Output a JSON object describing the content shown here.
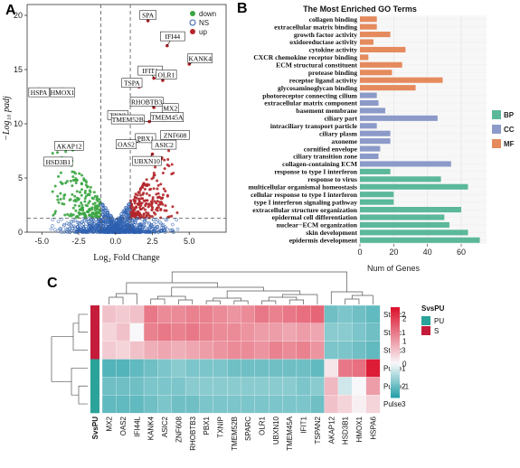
{
  "panels": {
    "a": "A",
    "b": "B",
    "c": "C"
  },
  "chart_data": [
    {
      "type": "scatter",
      "panel": "A",
      "xlabel": "Log₂ Fold  Change",
      "ylabel": "−Log₁₀ padj",
      "xlim": [
        -6,
        7.5
      ],
      "ylim": [
        0,
        21
      ],
      "xticks": [
        -5.0,
        -2.5,
        0.0,
        2.5,
        5.0
      ],
      "xtick_labels": [
        "-5.0",
        "-2.5",
        "0.0",
        "2.5",
        "5.0"
      ],
      "yticks": [
        0,
        5,
        10,
        15,
        20
      ],
      "thresholds": {
        "log2fc": [
          -1,
          1
        ],
        "padj_line": 1.3
      },
      "legend": [
        {
          "name": "down",
          "color": "#3aa541"
        },
        {
          "name": "NS",
          "color": "#2c5fb0"
        },
        {
          "name": "up",
          "color": "#b3262a"
        }
      ],
      "legend_position": "top-right",
      "labeled_genes": [
        {
          "gene": "SPA",
          "x": 2.2,
          "y": 19.5
        },
        {
          "gene": "IFI44",
          "x": 3.5,
          "y": 17.2
        },
        {
          "gene": "KANK4",
          "x": 5.0,
          "y": 15.5
        },
        {
          "gene": "IFIT1",
          "x": 2.6,
          "y": 14.2
        },
        {
          "gene": "OLR1",
          "x": 3.2,
          "y": 14.0
        },
        {
          "gene": "TSPA",
          "x": 1.6,
          "y": 13.4
        },
        {
          "gene": "RHOBTB3",
          "x": 2.6,
          "y": 11.5
        },
        {
          "gene": "MX2",
          "x": 3.1,
          "y": 10.9
        },
        {
          "gene": "TXNI",
          "x": 1.5,
          "y": 10.6
        },
        {
          "gene": "TMEM45A",
          "x": 3.0,
          "y": 10.4
        },
        {
          "gene": "TMEM52B",
          "x": 2.3,
          "y": 10.2
        },
        {
          "gene": "ZNF608",
          "x": 3.3,
          "y": 9.1
        },
        {
          "gene": "PBX1",
          "x": 2.4,
          "y": 8.8
        },
        {
          "gene": "OAS2",
          "x": 1.7,
          "y": 8.4
        },
        {
          "gene": "ASIC2",
          "x": 2.8,
          "y": 8.2
        },
        {
          "gene": "UBXN10",
          "x": 2.5,
          "y": 7.2
        },
        {
          "gene": "HSPA",
          "x": -5.2,
          "y": 13.2
        },
        {
          "gene": "HMOX1",
          "x": -3.6,
          "y": 13.2
        },
        {
          "gene": "AKAP12",
          "x": -2.9,
          "y": 7.6
        },
        {
          "gene": "HSD3B1",
          "x": -3.4,
          "y": 6.8
        }
      ]
    },
    {
      "type": "bar",
      "panel": "B",
      "title": "The Most Enriched GO Terms",
      "xlabel": "Num of Genes",
      "xlim": [
        0,
        75
      ],
      "xticks": [
        0,
        20,
        40,
        60
      ],
      "legend": [
        {
          "name": "BP",
          "color": "#5bb89a"
        },
        {
          "name": "CC",
          "color": "#8c9ac9"
        },
        {
          "name": "MF",
          "color": "#e58a5d"
        }
      ],
      "legend_position": "right",
      "categories": [
        "collagen binding",
        "extracellular matrix binding",
        "growth factor activity",
        "oxidoreductase activity",
        "cytokine activity",
        "CXCR chemokine receptor binding",
        "ECM structural constituent",
        "protease binding",
        "receptor ligand activity",
        "glycosaminoglycan binding",
        "photoreceptor connecting cilium",
        "extracellular matrix component",
        "basement membrane",
        "ciliary part",
        "intraciliary transport particle",
        "ciliary plasm",
        "axoneme",
        "cornified envelope",
        "ciliary transition zone",
        "collagen-containing ECM",
        "response to type I interferon",
        "response to virus",
        "multicellular organismal homeostasis",
        "cellular response to type I interferon",
        "type I interferon signaling pathway",
        "extracellular structure organization",
        "epidermal cell differentiation",
        "nuclear−ECM organization",
        "skin development",
        "epidermis development"
      ],
      "series": [
        {
          "name": "MF",
          "values": [
            10,
            10,
            18,
            8,
            27,
            5,
            25,
            19,
            49,
            33,
            null,
            null,
            null,
            null,
            null,
            null,
            null,
            null,
            null,
            null,
            null,
            null,
            null,
            null,
            null,
            null,
            null,
            null,
            null,
            null
          ]
        },
        {
          "name": "CC",
          "values": [
            null,
            null,
            null,
            null,
            null,
            null,
            null,
            null,
            null,
            null,
            10,
            11,
            15,
            46,
            10,
            18,
            18,
            12,
            11,
            54,
            null,
            null,
            null,
            null,
            null,
            null,
            null,
            null,
            null,
            null
          ]
        },
        {
          "name": "BP",
          "values": [
            null,
            null,
            null,
            null,
            null,
            null,
            null,
            null,
            null,
            null,
            null,
            null,
            null,
            null,
            null,
            null,
            null,
            null,
            null,
            null,
            18,
            48,
            64,
            20,
            20,
            60,
            50,
            53,
            64,
            71
          ]
        }
      ]
    },
    {
      "type": "heatmap",
      "panel": "C",
      "rows": [
        "Static2",
        "Static1",
        "Static3",
        "Pulse1",
        "Pulse2",
        "Pulse3"
      ],
      "row_groups": [
        "S",
        "S",
        "S",
        "PU",
        "PU",
        "PU"
      ],
      "columns": [
        "MX2",
        "OAS2",
        "IFI44L",
        "KANK4",
        "ASIC2",
        "ZNF608",
        "RHOBTB3",
        "PBX1",
        "TXNIP",
        "TMEM52B",
        "SPARC",
        "OLR1",
        "UBXN10",
        "TMEM45A",
        "IFIT1",
        "TSPAN2",
        "AKAP12",
        "HSD3B1",
        "HMOX1",
        "HSPA6"
      ],
      "annotation_label": "SvsPU",
      "legend_title": "SvsPU",
      "legend": [
        {
          "name": "PU",
          "color": "#2aa39a"
        },
        {
          "name": "S",
          "color": "#c41c3a"
        }
      ],
      "colorbar_ticks": [
        2,
        1,
        0,
        -1
      ],
      "color_range": [
        -1.5,
        2.5
      ],
      "values": [
        [
          0.6,
          0.5,
          0.6,
          1.4,
          1.2,
          1.2,
          1.3,
          1.3,
          1.2,
          1.1,
          1.2,
          1.4,
          1.3,
          1.4,
          1.5,
          1.6,
          -1.0,
          -0.9,
          -1.0,
          -1.1
        ],
        [
          0.4,
          0.6,
          0.0,
          1.3,
          1.4,
          1.3,
          1.4,
          1.3,
          1.2,
          1.2,
          1.1,
          1.0,
          1.0,
          0.9,
          1.0,
          0.9,
          -0.8,
          -0.8,
          -0.9,
          -1.0
        ],
        [
          0.5,
          0.4,
          0.6,
          0.8,
          0.9,
          0.8,
          0.9,
          1.0,
          1.1,
          1.2,
          1.2,
          1.1,
          1.3,
          1.2,
          1.3,
          1.1,
          -0.9,
          -0.9,
          -1.0,
          -1.1
        ],
        [
          -1.2,
          -1.2,
          -1.1,
          -1.0,
          -0.9,
          -0.8,
          -0.9,
          -0.9,
          -0.9,
          -1.0,
          -1.0,
          -1.0,
          -1.0,
          -1.0,
          -1.0,
          -1.1,
          0.2,
          1.4,
          1.5,
          2.4
        ],
        [
          -1.0,
          -1.0,
          -1.0,
          -0.9,
          -0.9,
          -0.9,
          -0.8,
          -0.8,
          -0.8,
          -0.8,
          -0.8,
          -0.8,
          -0.8,
          -0.8,
          -0.9,
          -0.8,
          0.7,
          -0.3,
          0.0,
          1.0
        ],
        [
          -1.1,
          -1.1,
          -1.1,
          -1.0,
          -0.9,
          -1.0,
          -1.0,
          -0.9,
          -0.9,
          -0.9,
          -0.9,
          -0.9,
          -0.9,
          -0.9,
          -0.9,
          -1.0,
          0.6,
          0.4,
          0.1,
          0.4
        ]
      ]
    }
  ]
}
